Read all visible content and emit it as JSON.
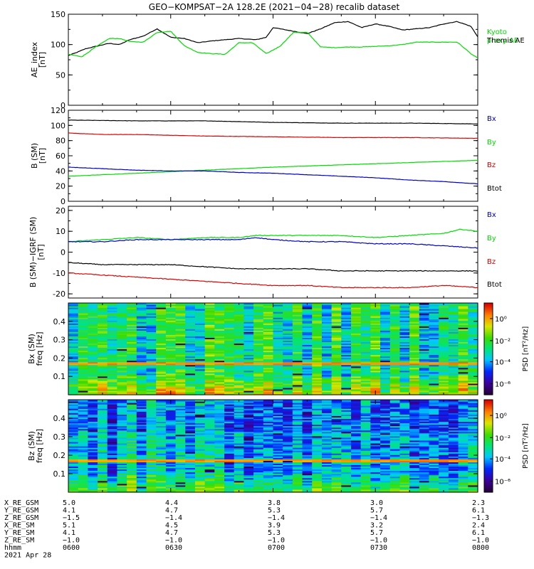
{
  "title": "GEO−KOMPSAT−2A 128.2E (2021−04−28) recalib dataset",
  "colors": {
    "black": "#000000",
    "green": "#00dd00",
    "blue": "#0000cc",
    "red": "#dd0000"
  },
  "time_axis": {
    "start": "0600",
    "end": "0800",
    "ticks": [
      "0600",
      "0630",
      "0700",
      "0730",
      "0800"
    ]
  },
  "chart_data": [
    {
      "type": "line",
      "name": "ae_panel",
      "ylabel": [
        "AE_index",
        "[nT]"
      ],
      "ylim": [
        0,
        150
      ],
      "yticks": [
        0,
        50,
        100,
        150
      ],
      "legend": [
        {
          "lines": [
            "Kyoto",
            "proxy AE"
          ],
          "color": "#00dd00"
        },
        {
          "lines": [
            "Themis AE"
          ],
          "color": "#000000"
        }
      ],
      "series": [
        {
          "name": "Themis AE",
          "color": "#000000",
          "x": [
            0,
            2,
            5,
            8,
            12,
            15,
            18,
            22,
            26,
            30,
            34,
            38,
            42,
            46,
            50,
            55,
            58,
            60,
            62,
            66,
            70,
            74,
            78,
            82,
            86,
            90,
            94,
            98,
            102,
            106,
            110,
            114,
            118,
            120,
            122,
            124,
            126
          ],
          "y": [
            82,
            86,
            93,
            97,
            102,
            100,
            108,
            114,
            126,
            112,
            110,
            103,
            106,
            108,
            110,
            108,
            112,
            128,
            126,
            122,
            118,
            126,
            136,
            138,
            128,
            134,
            130,
            124,
            126,
            128,
            134,
            138,
            130,
            113,
            90,
            86,
            92
          ]
        },
        {
          "name": "Kyoto proxy AE",
          "color": "#00dd00",
          "x": [
            0,
            4,
            8,
            12,
            15,
            18,
            22,
            26,
            30,
            34,
            38,
            42,
            46,
            50,
            54,
            58,
            62,
            66,
            70,
            74,
            78,
            82,
            86,
            90,
            94,
            98,
            102,
            106,
            110,
            114,
            118,
            122,
            126
          ],
          "y": [
            84,
            80,
            96,
            110,
            110,
            105,
            104,
            120,
            122,
            98,
            87,
            85,
            84,
            103,
            103,
            85,
            97,
            120,
            120,
            96,
            95,
            96,
            96,
            97,
            98,
            100,
            104,
            104,
            104,
            104,
            85,
            70,
            62
          ]
        }
      ]
    },
    {
      "type": "line",
      "name": "b_sm_panel",
      "ylabel": [
        "B (SM)",
        "[nT]"
      ],
      "ylim": [
        0,
        120
      ],
      "yticks": [
        0,
        20,
        40,
        60,
        80,
        100,
        120
      ],
      "legend": [
        {
          "lines": [
            "Bx"
          ],
          "color": "#0000cc"
        },
        {
          "lines": [
            "By"
          ],
          "color": "#00dd00"
        },
        {
          "lines": [
            "Bz"
          ],
          "color": "#dd0000"
        },
        {
          "lines": [
            "Btot"
          ],
          "color": "#000000"
        }
      ],
      "series": [
        {
          "name": "Btot",
          "color": "#000000",
          "x": [
            0,
            20,
            40,
            60,
            80,
            100,
            120,
            126
          ],
          "y": [
            107,
            106,
            106,
            104,
            103,
            103,
            102,
            101
          ]
        },
        {
          "name": "Bz",
          "color": "#dd0000",
          "x": [
            0,
            10,
            20,
            40,
            60,
            80,
            100,
            120,
            126
          ],
          "y": [
            90,
            88,
            88,
            86,
            85,
            84,
            84,
            83,
            81
          ]
        },
        {
          "name": "By",
          "color": "#00dd00",
          "x": [
            0,
            10,
            20,
            30,
            40,
            60,
            80,
            100,
            120,
            126
          ],
          "y": [
            33,
            35,
            37,
            39,
            41,
            45,
            48,
            51,
            54,
            55
          ]
        },
        {
          "name": "Bx",
          "color": "#0000cc",
          "x": [
            0,
            10,
            20,
            30,
            40,
            50,
            60,
            70,
            80,
            90,
            100,
            110,
            120,
            126
          ],
          "y": [
            45,
            43,
            41,
            40,
            40,
            38,
            37,
            35,
            33,
            31,
            28,
            26,
            23,
            21
          ]
        }
      ]
    },
    {
      "type": "line",
      "name": "b_minus_igrf_panel",
      "ylabel": [
        "B (SM)−IGRF (SM)",
        "[nT]"
      ],
      "ylim": [
        -22,
        22
      ],
      "yticks": [
        -20,
        -10,
        0,
        10,
        20
      ],
      "legend": [
        {
          "lines": [
            "Bx"
          ],
          "color": "#0000cc"
        },
        {
          "lines": [
            "By"
          ],
          "color": "#00dd00"
        },
        {
          "lines": [
            "Bz"
          ],
          "color": "#dd0000"
        },
        {
          "lines": [
            "Btot"
          ],
          "color": "#000000"
        }
      ],
      "series": [
        {
          "name": "By",
          "color": "#00dd00",
          "x": [
            0,
            10,
            20,
            30,
            40,
            50,
            55,
            60,
            70,
            80,
            90,
            100,
            110,
            115,
            120,
            126
          ],
          "y": [
            5,
            6,
            7,
            6,
            7,
            7,
            8,
            8,
            8,
            8,
            7,
            8,
            9,
            11,
            10,
            10
          ]
        },
        {
          "name": "Bx",
          "color": "#0000cc",
          "x": [
            0,
            10,
            20,
            30,
            40,
            50,
            55,
            60,
            70,
            80,
            90,
            100,
            110,
            120,
            126
          ],
          "y": [
            5,
            5,
            6,
            6,
            6,
            6,
            7,
            6,
            5,
            5,
            4,
            4,
            3,
            2,
            1
          ]
        },
        {
          "name": "Btot",
          "color": "#000000",
          "x": [
            0,
            10,
            20,
            30,
            40,
            50,
            60,
            70,
            80,
            90,
            100,
            110,
            120,
            126
          ],
          "y": [
            -5,
            -6,
            -6,
            -6,
            -7,
            -8,
            -8,
            -8,
            -9,
            -9,
            -9,
            -9,
            -9,
            -10
          ]
        },
        {
          "name": "Bz",
          "color": "#dd0000",
          "x": [
            0,
            10,
            20,
            30,
            40,
            50,
            60,
            70,
            80,
            90,
            100,
            110,
            120,
            126
          ],
          "y": [
            -10,
            -11,
            -12,
            -13,
            -14,
            -15,
            -16,
            -16,
            -17,
            -17,
            -17,
            -16,
            -17,
            -19
          ]
        }
      ]
    },
    {
      "type": "heatmap",
      "name": "bx_spectrogram",
      "ylabel": [
        "Bx (SM)",
        "freq [Hz]"
      ],
      "ylim": [
        0,
        0.5
      ],
      "yticks": [
        0.1,
        0.2,
        0.3,
        0.4
      ],
      "colorbar": {
        "label": "PSD [nT²/Hz]",
        "ticks": [
          "10⁰",
          "10⁻²",
          "10⁻⁴",
          "10⁻⁶"
        ]
      },
      "description_values": {
        "low_freq_band_hz": 0.17,
        "background_psd": "10⁻³"
      }
    },
    {
      "type": "heatmap",
      "name": "bz_spectrogram",
      "ylabel": [
        "Bz (SM)",
        "freq [Hz]"
      ],
      "ylim": [
        0,
        0.5
      ],
      "yticks": [
        0.1,
        0.2,
        0.3,
        0.4
      ],
      "colorbar": {
        "label": "PSD [nT²/Hz]",
        "ticks": [
          "10⁰",
          "10⁻²",
          "10⁻⁴",
          "10⁻⁶"
        ]
      },
      "description_values": {
        "low_freq_band_hz": 0.17,
        "background_psd": "10⁻⁴"
      }
    }
  ],
  "ephemeris": {
    "rows": [
      {
        "label": "X_RE_GSM",
        "values": [
          "5.0",
          "4.4",
          "3.8",
          "3.0",
          "2.3"
        ]
      },
      {
        "label": "Y_RE_GSM",
        "values": [
          "4.1",
          "4.7",
          "5.3",
          "5.7",
          "6.1"
        ]
      },
      {
        "label": "Z_RE_GSM",
        "values": [
          "−1.5",
          "−1.4",
          "−1.4",
          "−1.4",
          "−1.3"
        ]
      },
      {
        "label": "X_RE_SM",
        "values": [
          "5.1",
          "4.5",
          "3.9",
          "3.2",
          "2.4"
        ]
      },
      {
        "label": "Y_RE_SM",
        "values": [
          "4.1",
          "4.7",
          "5.3",
          "5.7",
          "6.1"
        ]
      },
      {
        "label": "Z_RE_SM",
        "values": [
          "−1.0",
          "−1.0",
          "−1.0",
          "−1.0",
          "−1.0"
        ]
      },
      {
        "label": "hhmm",
        "values": [
          "0600",
          "0630",
          "0700",
          "0730",
          "0800"
        ]
      }
    ],
    "date": "2021 Apr 28"
  }
}
